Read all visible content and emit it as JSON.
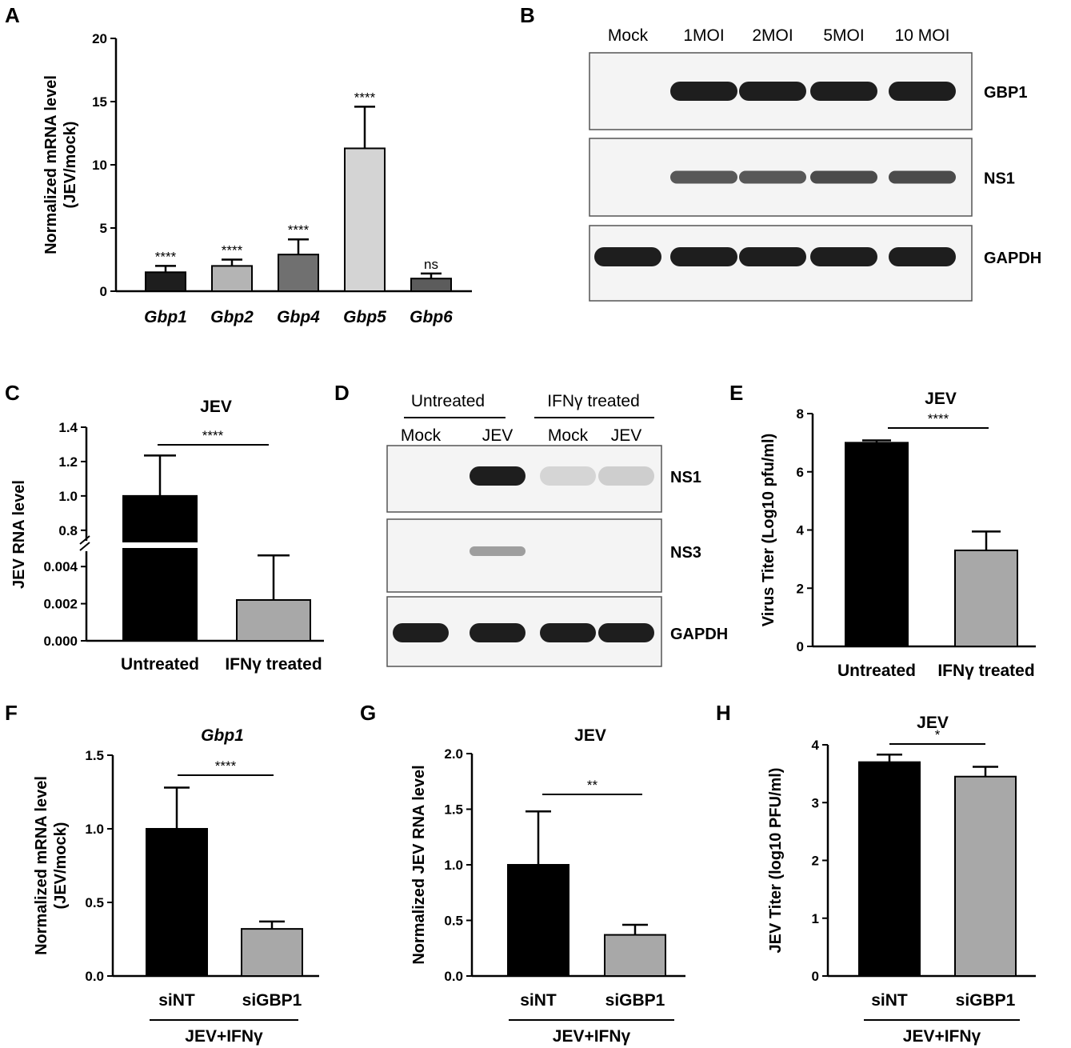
{
  "panels": {
    "A": "A",
    "B": "B",
    "C": "C",
    "D": "D",
    "E": "E",
    "F": "F",
    "G": "G",
    "H": "H"
  },
  "chart_data": [
    {
      "panel": "A",
      "type": "bar",
      "title": "",
      "ylabel": "Normalized mRNA level\n(JEV/mock)",
      "categories": [
        "Gbp1",
        "Gbp2",
        "Gbp4",
        "Gbp5",
        "Gbp6"
      ],
      "values": [
        1.5,
        2.0,
        2.9,
        11.3,
        1.0
      ],
      "errors": [
        0.5,
        0.5,
        1.2,
        3.3,
        0.4
      ],
      "significance": [
        "****",
        "****",
        "****",
        "****",
        "ns"
      ],
      "bar_colors": [
        "#1e1e1e",
        "#b4b4b4",
        "#707070",
        "#d4d4d4",
        "#5c5c5c"
      ],
      "ylim": [
        0,
        20
      ],
      "yticks": [
        0,
        5,
        10,
        15,
        20
      ]
    },
    {
      "panel": "C",
      "type": "bar",
      "title": "JEV",
      "ylabel": "JEV RNA level",
      "categories": [
        "Untreated",
        "IFNγ treated"
      ],
      "values": [
        1.0,
        0.0022
      ],
      "errors": [
        0.235,
        0.0024
      ],
      "bar_colors": [
        "#000000",
        "#a8a8a8"
      ],
      "axis_break": true,
      "lower_segment": {
        "ylim": [
          0,
          0.005
        ],
        "yticks": [
          "0.000",
          "0.002",
          "0.004"
        ]
      },
      "upper_segment": {
        "ylim": [
          0.72,
          1.4
        ],
        "yticks": [
          "0.8",
          "1.0",
          "1.2",
          "1.4"
        ]
      },
      "comparisons": [
        {
          "label": "****"
        }
      ]
    },
    {
      "panel": "E",
      "type": "bar",
      "title": "JEV",
      "ylabel": "Virus Titer (Log10 pfu/ml)",
      "categories": [
        "Untreated",
        "IFNγ treated"
      ],
      "values": [
        7.0,
        3.3
      ],
      "errors": [
        0.08,
        0.65
      ],
      "bar_colors": [
        "#000000",
        "#a8a8a8"
      ],
      "ylim": [
        0,
        8
      ],
      "yticks": [
        0,
        2,
        4,
        6,
        8
      ],
      "comparisons": [
        {
          "label": "****"
        }
      ]
    },
    {
      "panel": "F",
      "type": "bar",
      "title": "Gbp1",
      "ylabel": "Normalized mRNA level\n(JEV/mock)",
      "categories": [
        "siNT",
        "siGBP1"
      ],
      "group_label": "JEV+IFNγ",
      "values": [
        1.0,
        0.32
      ],
      "errors": [
        0.28,
        0.05
      ],
      "bar_colors": [
        "#000000",
        "#a8a8a8"
      ],
      "ylim": [
        0,
        1.5
      ],
      "yticks": [
        "0.0",
        "0.5",
        "1.0",
        "1.5"
      ],
      "comparisons": [
        {
          "label": "****"
        }
      ]
    },
    {
      "panel": "G",
      "type": "bar",
      "title": "JEV",
      "ylabel": "Normalized JEV RNA level",
      "categories": [
        "siNT",
        "siGBP1"
      ],
      "group_label": "JEV+IFNγ",
      "values": [
        1.0,
        0.37
      ],
      "errors": [
        0.48,
        0.09
      ],
      "bar_colors": [
        "#000000",
        "#a8a8a8"
      ],
      "ylim": [
        0,
        2.0
      ],
      "yticks": [
        "0.0",
        "0.5",
        "1.0",
        "1.5",
        "2.0"
      ],
      "comparisons": [
        {
          "label": "**"
        }
      ]
    },
    {
      "panel": "H",
      "type": "bar",
      "title": "JEV",
      "ylabel": "JEV Titer (log10 PFU/ml)",
      "categories": [
        "siNT",
        "siGBP1"
      ],
      "group_label": "JEV+IFNγ",
      "values": [
        3.7,
        3.45
      ],
      "errors": [
        0.13,
        0.17
      ],
      "bar_colors": [
        "#000000",
        "#a8a8a8"
      ],
      "ylim": [
        0,
        4
      ],
      "yticks": [
        0,
        1,
        2,
        3,
        4
      ],
      "comparisons": [
        {
          "label": "*"
        }
      ]
    }
  ],
  "blots": {
    "B": {
      "lanes": [
        "Mock",
        "1MOI",
        "2MOI",
        "5MOI",
        "10 MOI"
      ],
      "rows": [
        {
          "label": "GBP1",
          "bands": [
            0,
            1,
            1,
            1,
            1
          ]
        },
        {
          "label": "NS1",
          "bands": [
            0,
            0.8,
            0.8,
            0.85,
            0.85
          ]
        },
        {
          "label": "GAPDH",
          "bands": [
            1,
            1,
            1,
            1,
            1
          ]
        }
      ]
    },
    "D": {
      "groups": [
        "Untreated",
        "IFNγ treated"
      ],
      "lanes": [
        "Mock",
        "JEV",
        "Mock",
        "JEV"
      ],
      "rows": [
        {
          "label": "NS1",
          "bands": [
            0,
            1,
            0.15,
            0.2
          ]
        },
        {
          "label": "NS3",
          "bands": [
            0,
            0.5,
            0,
            0
          ]
        },
        {
          "label": "GAPDH",
          "bands": [
            1,
            1,
            1,
            1
          ]
        }
      ]
    }
  }
}
